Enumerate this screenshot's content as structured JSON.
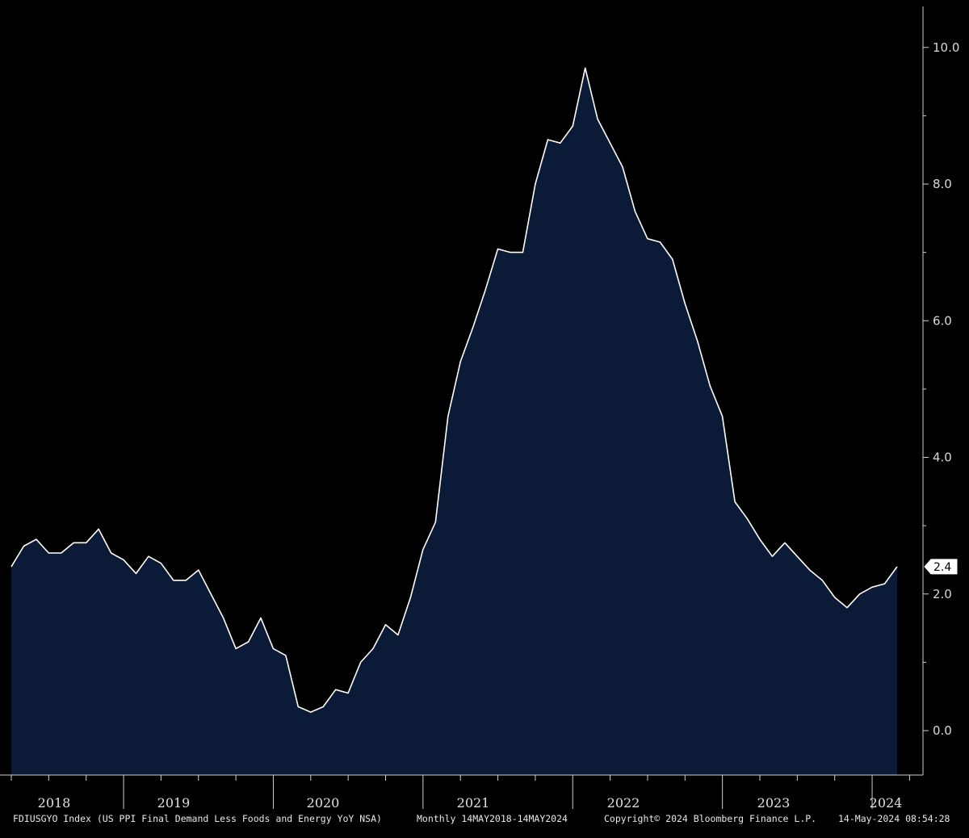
{
  "chart_data": {
    "type": "area",
    "series": [
      {
        "values": [
          2.4,
          2.7,
          2.8,
          2.6,
          2.6,
          2.75,
          2.75,
          2.95,
          2.6,
          2.5,
          2.3,
          2.55,
          2.45,
          2.2,
          2.2,
          2.35,
          2.0,
          1.65,
          1.2,
          1.3,
          1.65,
          1.2,
          1.1,
          0.35,
          0.27,
          0.35,
          0.6,
          0.55,
          1.0,
          1.2,
          1.55,
          1.4,
          1.95,
          2.65,
          3.05,
          4.6,
          5.4,
          5.9,
          6.45,
          7.05,
          7.0,
          7.0,
          8.0,
          8.65,
          8.6,
          8.85,
          9.7,
          8.95,
          8.6,
          8.25,
          7.6,
          7.2,
          7.15,
          6.9,
          6.25,
          5.7,
          5.05,
          4.6,
          3.35,
          3.1,
          2.8,
          2.55,
          2.75,
          2.55,
          2.35,
          2.2,
          1.95,
          1.8,
          2.0,
          2.1,
          2.15,
          2.4
        ]
      }
    ],
    "x_start": "2018-04",
    "x_end": "2024-04",
    "frequency": "monthly",
    "x_tick_labels": [
      "2018",
      "2019",
      "2020",
      "2021",
      "2022",
      "2023",
      "2024"
    ],
    "y_ticks": [
      "0.0",
      "2.0",
      "4.0",
      "6.0",
      "8.0",
      "10.0"
    ],
    "ylim": [
      -0.65,
      10.6
    ],
    "last_value_label": "2.4",
    "grid": false,
    "line_color": "#ffffff",
    "fill_color": "#0b1a36",
    "background_color": "#000000"
  },
  "footer": {
    "description": "FDIUSGYO Index (US PPI Final Demand Less Foods and Energy YoY NSA)",
    "range": "Monthly 14MAY2018-14MAY2024",
    "copyright": "Copyright© 2024 Bloomberg Finance L.P.",
    "timestamp": "14-May-2024 08:54:28"
  }
}
